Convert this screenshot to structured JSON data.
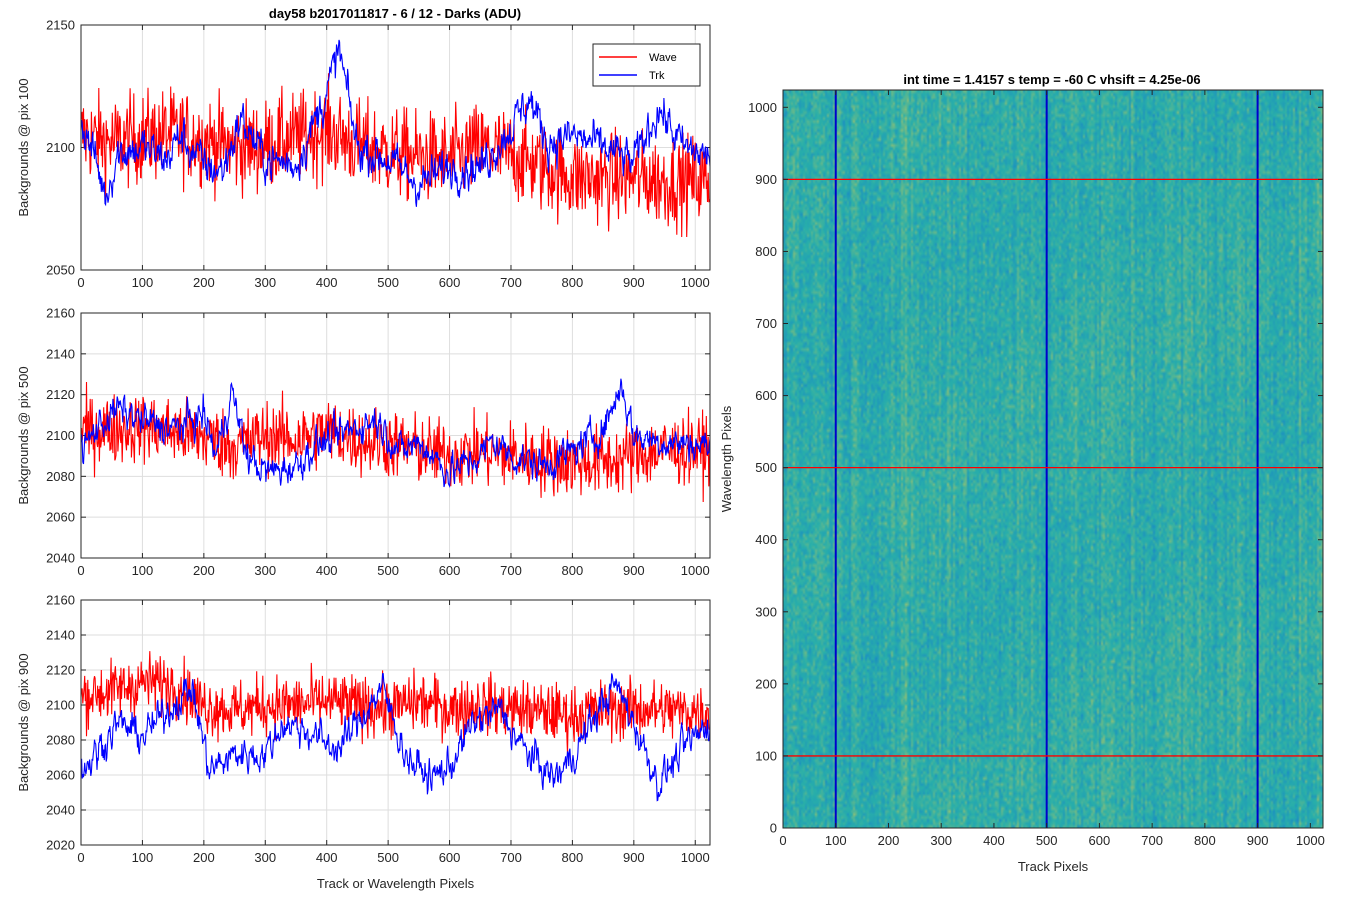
{
  "figure": {
    "title": "day58 b2017011817 - 6 / 12 - Darks (ADU)",
    "right_title": "int time = 1.4157 s    temp = -60 C    vhsift = 4.25e-06"
  },
  "chart_data": [
    {
      "type": "line",
      "title": "day58 b2017011817 - 6 / 12 - Darks (ADU)",
      "xlabel": "",
      "ylabel": "Backgrounds @ pix 100",
      "xlim": [
        0,
        1024
      ],
      "ylim": [
        2050,
        2150
      ],
      "xticks": [
        0,
        100,
        200,
        300,
        400,
        500,
        600,
        700,
        800,
        900,
        1000
      ],
      "yticks": [
        2050,
        2100,
        2150
      ],
      "grid": true,
      "legend": "top-right",
      "series": [
        {
          "name": "Wave",
          "color": "#ff0000",
          "mean": 2100,
          "amp": 13,
          "anchors": [
            [
              0,
              2105
            ],
            [
              50,
              2102
            ],
            [
              100,
              2104
            ],
            [
              150,
              2106
            ],
            [
              200,
              2103
            ],
            [
              250,
              2100
            ],
            [
              300,
              2101
            ],
            [
              350,
              2104
            ],
            [
              400,
              2107
            ],
            [
              450,
              2101
            ],
            [
              500,
              2098
            ],
            [
              550,
              2096
            ],
            [
              600,
              2095
            ],
            [
              650,
              2100
            ],
            [
              700,
              2097
            ],
            [
              750,
              2092
            ],
            [
              800,
              2088
            ],
            [
              850,
              2087
            ],
            [
              900,
              2088
            ],
            [
              950,
              2086
            ],
            [
              1024,
              2087
            ]
          ]
        },
        {
          "name": "Trk",
          "color": "#0000ff",
          "mean": 2100,
          "amp": 5,
          "anchors": [
            [
              0,
              2110
            ],
            [
              20,
              2098
            ],
            [
              40,
              2080
            ],
            [
              60,
              2098
            ],
            [
              100,
              2100
            ],
            [
              140,
              2095
            ],
            [
              160,
              2105
            ],
            [
              200,
              2093
            ],
            [
              230,
              2090
            ],
            [
              260,
              2112
            ],
            [
              300,
              2095
            ],
            [
              350,
              2093
            ],
            [
              400,
              2122
            ],
            [
              420,
              2140
            ],
            [
              450,
              2100
            ],
            [
              500,
              2095
            ],
            [
              550,
              2085
            ],
            [
              600,
              2092
            ],
            [
              650,
              2092
            ],
            [
              700,
              2108
            ],
            [
              730,
              2120
            ],
            [
              760,
              2102
            ],
            [
              800,
              2105
            ],
            [
              850,
              2100
            ],
            [
              900,
              2094
            ],
            [
              940,
              2116
            ],
            [
              980,
              2100
            ],
            [
              1024,
              2096
            ]
          ]
        }
      ]
    },
    {
      "type": "line",
      "xlabel": "",
      "ylabel": "Backgrounds @ pix 500",
      "xlim": [
        0,
        1024
      ],
      "ylim": [
        2040,
        2160
      ],
      "xticks": [
        0,
        100,
        200,
        300,
        400,
        500,
        600,
        700,
        800,
        900,
        1000
      ],
      "yticks": [
        2040,
        2060,
        2080,
        2100,
        2120,
        2140,
        2160
      ],
      "grid": true,
      "series": [
        {
          "name": "Wave",
          "color": "#ff0000",
          "mean": 2100,
          "amp": 12,
          "anchors": [
            [
              0,
              2102
            ],
            [
              50,
              2103
            ],
            [
              100,
              2104
            ],
            [
              150,
              2102
            ],
            [
              200,
              2099
            ],
            [
              250,
              2095
            ],
            [
              300,
              2100
            ],
            [
              350,
              2098
            ],
            [
              400,
              2102
            ],
            [
              450,
              2098
            ],
            [
              500,
              2096
            ],
            [
              550,
              2093
            ],
            [
              600,
              2090
            ],
            [
              650,
              2092
            ],
            [
              700,
              2090
            ],
            [
              750,
              2088
            ],
            [
              800,
              2087
            ],
            [
              850,
              2087
            ],
            [
              900,
              2090
            ],
            [
              950,
              2093
            ],
            [
              1024,
              2093
            ]
          ]
        },
        {
          "name": "Trk",
          "color": "#0000ff",
          "mean": 2100,
          "amp": 5,
          "anchors": [
            [
              0,
              2092
            ],
            [
              30,
              2105
            ],
            [
              60,
              2113
            ],
            [
              100,
              2107
            ],
            [
              150,
              2103
            ],
            [
              200,
              2110
            ],
            [
              220,
              2090
            ],
            [
              245,
              2122
            ],
            [
              270,
              2090
            ],
            [
              300,
              2082
            ],
            [
              350,
              2085
            ],
            [
              380,
              2095
            ],
            [
              400,
              2097
            ],
            [
              440,
              2103
            ],
            [
              480,
              2108
            ],
            [
              520,
              2092
            ],
            [
              550,
              2097
            ],
            [
              600,
              2082
            ],
            [
              650,
              2090
            ],
            [
              670,
              2098
            ],
            [
              700,
              2090
            ],
            [
              750,
              2085
            ],
            [
              800,
              2092
            ],
            [
              850,
              2103
            ],
            [
              880,
              2125
            ],
            [
              900,
              2100
            ],
            [
              950,
              2097
            ],
            [
              1024,
              2095
            ]
          ]
        }
      ]
    },
    {
      "type": "line",
      "xlabel": "Track or Wavelength Pixels",
      "ylabel": "Backgrounds @ pix 900",
      "xlim": [
        0,
        1024
      ],
      "ylim": [
        2020,
        2160
      ],
      "xticks": [
        0,
        100,
        200,
        300,
        400,
        500,
        600,
        700,
        800,
        900,
        1000
      ],
      "yticks": [
        2020,
        2040,
        2060,
        2080,
        2100,
        2120,
        2140,
        2160
      ],
      "grid": true,
      "series": [
        {
          "name": "Wave",
          "color": "#ff0000",
          "mean": 2100,
          "amp": 12,
          "anchors": [
            [
              0,
              2105
            ],
            [
              50,
              2108
            ],
            [
              100,
              2113
            ],
            [
              150,
              2112
            ],
            [
              200,
              2100
            ],
            [
              250,
              2097
            ],
            [
              300,
              2100
            ],
            [
              350,
              2100
            ],
            [
              400,
              2102
            ],
            [
              450,
              2100
            ],
            [
              500,
              2098
            ],
            [
              550,
              2102
            ],
            [
              600,
              2098
            ],
            [
              650,
              2100
            ],
            [
              700,
              2098
            ],
            [
              750,
              2096
            ],
            [
              800,
              2094
            ],
            [
              850,
              2097
            ],
            [
              900,
              2098
            ],
            [
              950,
              2097
            ],
            [
              1024,
              2096
            ]
          ]
        },
        {
          "name": "Trk",
          "color": "#0000ff",
          "mean": 2080,
          "amp": 6,
          "anchors": [
            [
              0,
              2062
            ],
            [
              30,
              2075
            ],
            [
              60,
              2090
            ],
            [
              100,
              2082
            ],
            [
              150,
              2100
            ],
            [
              180,
              2110
            ],
            [
              210,
              2062
            ],
            [
              250,
              2072
            ],
            [
              300,
              2072
            ],
            [
              330,
              2090
            ],
            [
              370,
              2085
            ],
            [
              400,
              2078
            ],
            [
              420,
              2075
            ],
            [
              460,
              2095
            ],
            [
              490,
              2110
            ],
            [
              530,
              2070
            ],
            [
              570,
              2058
            ],
            [
              600,
              2065
            ],
            [
              640,
              2090
            ],
            [
              680,
              2098
            ],
            [
              720,
              2075
            ],
            [
              770,
              2058
            ],
            [
              800,
              2070
            ],
            [
              840,
              2096
            ],
            [
              870,
              2112
            ],
            [
              900,
              2090
            ],
            [
              940,
              2055
            ],
            [
              980,
              2075
            ],
            [
              1024,
              2090
            ]
          ]
        }
      ]
    },
    {
      "type": "heatmap",
      "title": "int time = 1.4157 s    temp = -60 C    vhsift = 4.25e-06",
      "xlabel": "Track Pixels",
      "ylabel": "Wavelength Pixels",
      "xlim": [
        0,
        1024
      ],
      "ylim": [
        0,
        1024
      ],
      "xticks": [
        0,
        100,
        200,
        300,
        400,
        500,
        600,
        700,
        800,
        900,
        1000
      ],
      "yticks": [
        0,
        100,
        200,
        300,
        400,
        500,
        600,
        700,
        800,
        900,
        1000
      ],
      "colormap": "parula",
      "marker_lines_vertical": {
        "color": "#0000cc",
        "values": [
          100,
          500,
          900
        ]
      },
      "marker_lines_horizontal": {
        "color": "#ff0000",
        "values": [
          100,
          500,
          900
        ]
      }
    }
  ],
  "legend": [
    {
      "label": "Wave",
      "color": "#ff0000"
    },
    {
      "label": "Trk",
      "color": "#0000ff"
    }
  ]
}
